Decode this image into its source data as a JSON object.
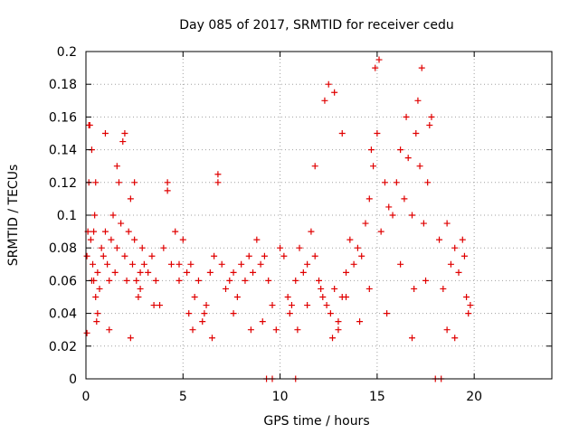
{
  "chart_data": {
    "type": "scatter",
    "title": "Day 085 of 2017, SRMTID for receiver cedu",
    "xlabel": "GPS time / hours",
    "ylabel": "SRMTID / TECUs",
    "xlim": [
      0,
      24
    ],
    "ylim": [
      0,
      0.2
    ],
    "xticks": [
      0,
      5,
      10,
      15,
      20
    ],
    "xtick_labels": [
      "0",
      "5",
      "10",
      "15",
      "20"
    ],
    "yticks": [
      0,
      0.02,
      0.04,
      0.06,
      0.08,
      0.1,
      0.12,
      0.14,
      0.16,
      0.18,
      0.2
    ],
    "ytick_labels": [
      "0",
      "0.02",
      "0.04",
      "0.06",
      "0.08",
      "0.1",
      "0.12",
      "0.14",
      "0.16",
      "0.18",
      "0.2"
    ],
    "grid": true,
    "marker": "+",
    "color": "#e00000",
    "series": [
      {
        "name": "SRMTID",
        "x": [
          0.05,
          0.1,
          0.15,
          0.2,
          0.25,
          0.3,
          0.35,
          0.4,
          0.45,
          0.5,
          0.55,
          0.6,
          0.7,
          0.8,
          0.9,
          1.0,
          1.1,
          1.2,
          1.3,
          1.4,
          1.5,
          1.6,
          1.7,
          1.8,
          1.9,
          2.0,
          2.1,
          2.2,
          2.3,
          2.4,
          2.5,
          2.6,
          2.7,
          2.8,
          2.9,
          3.0,
          3.2,
          3.4,
          3.6,
          3.8,
          4.0,
          4.2,
          4.4,
          4.6,
          4.8,
          5.0,
          5.2,
          5.4,
          5.6,
          5.8,
          6.0,
          6.2,
          6.4,
          6.6,
          6.8,
          7.0,
          7.2,
          7.4,
          7.6,
          7.8,
          8.0,
          8.2,
          8.4,
          8.6,
          8.8,
          9.0,
          9.2,
          9.4,
          9.6,
          9.8,
          10.0,
          10.2,
          10.4,
          10.6,
          10.8,
          11.0,
          11.2,
          11.4,
          11.6,
          11.8,
          12.0,
          12.2,
          12.4,
          12.6,
          12.8,
          13.0,
          13.2,
          13.4,
          13.6,
          13.8,
          14.0,
          14.2,
          14.4,
          14.6,
          14.8,
          15.0,
          15.2,
          15.4,
          15.6,
          15.8,
          16.0,
          16.2,
          16.4,
          16.6,
          16.8,
          17.0,
          17.2,
          17.4,
          17.6,
          17.8,
          18.2,
          18.4,
          18.6,
          18.8,
          19.0,
          19.2,
          19.4,
          19.6,
          19.8,
          0.15,
          0.3,
          0.5,
          1.0,
          1.6,
          2.0,
          2.5,
          4.2,
          6.8,
          11.8,
          12.3,
          12.5,
          13.2,
          14.7,
          14.9,
          15.1,
          16.5,
          17.1,
          17.3,
          17.7,
          12.8,
          13.0,
          16.8,
          0.05,
          0.4,
          0.6,
          1.2,
          2.3,
          2.8,
          3.5,
          4.8,
          5.3,
          5.5,
          6.1,
          6.5,
          7.6,
          8.5,
          9.1,
          10.5,
          10.9,
          11.4,
          12.1,
          12.7,
          13.4,
          14.1,
          14.6,
          15.5,
          16.2,
          16.9,
          17.5,
          18.6,
          19.0,
          19.5,
          19.7,
          9.3,
          9.6,
          10.8,
          18.0,
          18.3
        ],
        "y": [
          0.075,
          0.09,
          0.12,
          0.155,
          0.085,
          0.06,
          0.07,
          0.09,
          0.1,
          0.05,
          0.035,
          0.065,
          0.055,
          0.08,
          0.075,
          0.09,
          0.07,
          0.06,
          0.085,
          0.1,
          0.065,
          0.08,
          0.12,
          0.095,
          0.145,
          0.075,
          0.06,
          0.09,
          0.11,
          0.07,
          0.085,
          0.06,
          0.05,
          0.065,
          0.08,
          0.07,
          0.065,
          0.075,
          0.06,
          0.045,
          0.08,
          0.115,
          0.07,
          0.09,
          0.06,
          0.085,
          0.065,
          0.07,
          0.05,
          0.06,
          0.035,
          0.045,
          0.065,
          0.075,
          0.12,
          0.07,
          0.055,
          0.06,
          0.065,
          0.05,
          0.07,
          0.06,
          0.075,
          0.065,
          0.085,
          0.07,
          0.075,
          0.06,
          0.045,
          0.03,
          0.08,
          0.075,
          0.05,
          0.045,
          0.06,
          0.08,
          0.065,
          0.07,
          0.09,
          0.075,
          0.06,
          0.05,
          0.045,
          0.04,
          0.055,
          0.035,
          0.05,
          0.065,
          0.085,
          0.07,
          0.08,
          0.075,
          0.095,
          0.11,
          0.13,
          0.15,
          0.09,
          0.12,
          0.105,
          0.1,
          0.12,
          0.14,
          0.11,
          0.135,
          0.1,
          0.15,
          0.13,
          0.095,
          0.12,
          0.16,
          0.085,
          0.055,
          0.095,
          0.07,
          0.08,
          0.065,
          0.085,
          0.05,
          0.045,
          0.155,
          0.14,
          0.12,
          0.15,
          0.13,
          0.15,
          0.12,
          0.12,
          0.125,
          0.13,
          0.17,
          0.18,
          0.15,
          0.14,
          0.19,
          0.195,
          0.16,
          0.17,
          0.19,
          0.155,
          0.175,
          0.03,
          0.025,
          0.028,
          0.06,
          0.04,
          0.03,
          0.025,
          0.055,
          0.045,
          0.07,
          0.04,
          0.03,
          0.04,
          0.025,
          0.04,
          0.03,
          0.035,
          0.04,
          0.03,
          0.045,
          0.055,
          0.025,
          0.05,
          0.035,
          0.055,
          0.04,
          0.07,
          0.055,
          0.06,
          0.03,
          0.025,
          0.075,
          0.04,
          0,
          0,
          0,
          0,
          0
        ]
      }
    ]
  }
}
